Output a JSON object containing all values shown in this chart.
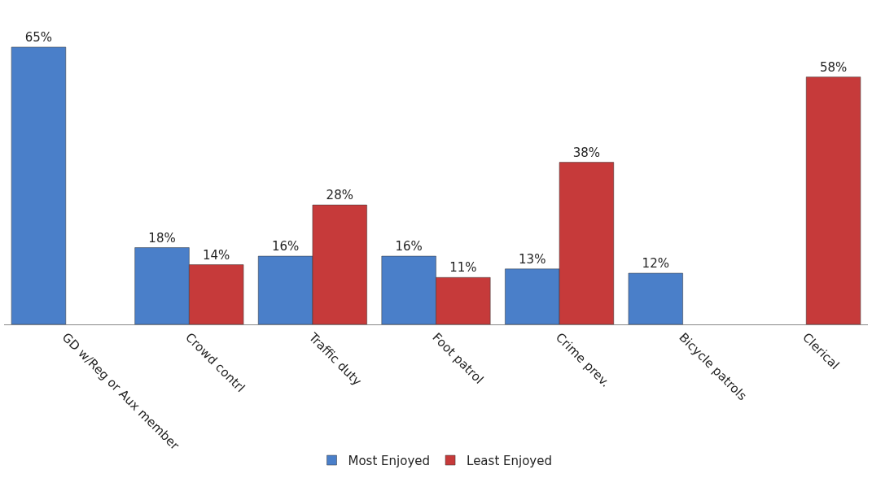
{
  "chart_data": {
    "type": "bar",
    "categories": [
      "GD w/Reg or Aux member",
      "Crowd contrl",
      "Traffic duty",
      "Foot patrol",
      "Crime prev.",
      "Bicycle patrols",
      "Clerical"
    ],
    "series": [
      {
        "name": "Most Enjoyed",
        "color": "#4a7fc9",
        "values": [
          65,
          18,
          16,
          16,
          13,
          12,
          null
        ],
        "value_labels": [
          "65%",
          "18%",
          "16%",
          "16%",
          "13%",
          "12%",
          null
        ]
      },
      {
        "name": "Least Enjoyed",
        "color": "#c63a3a",
        "values": [
          null,
          14,
          28,
          11,
          38,
          null,
          58
        ],
        "value_labels": [
          null,
          "14%",
          "28%",
          "11%",
          "38%",
          null,
          "58%"
        ]
      }
    ],
    "legend": "bottom",
    "tick_labels": "x"
  }
}
